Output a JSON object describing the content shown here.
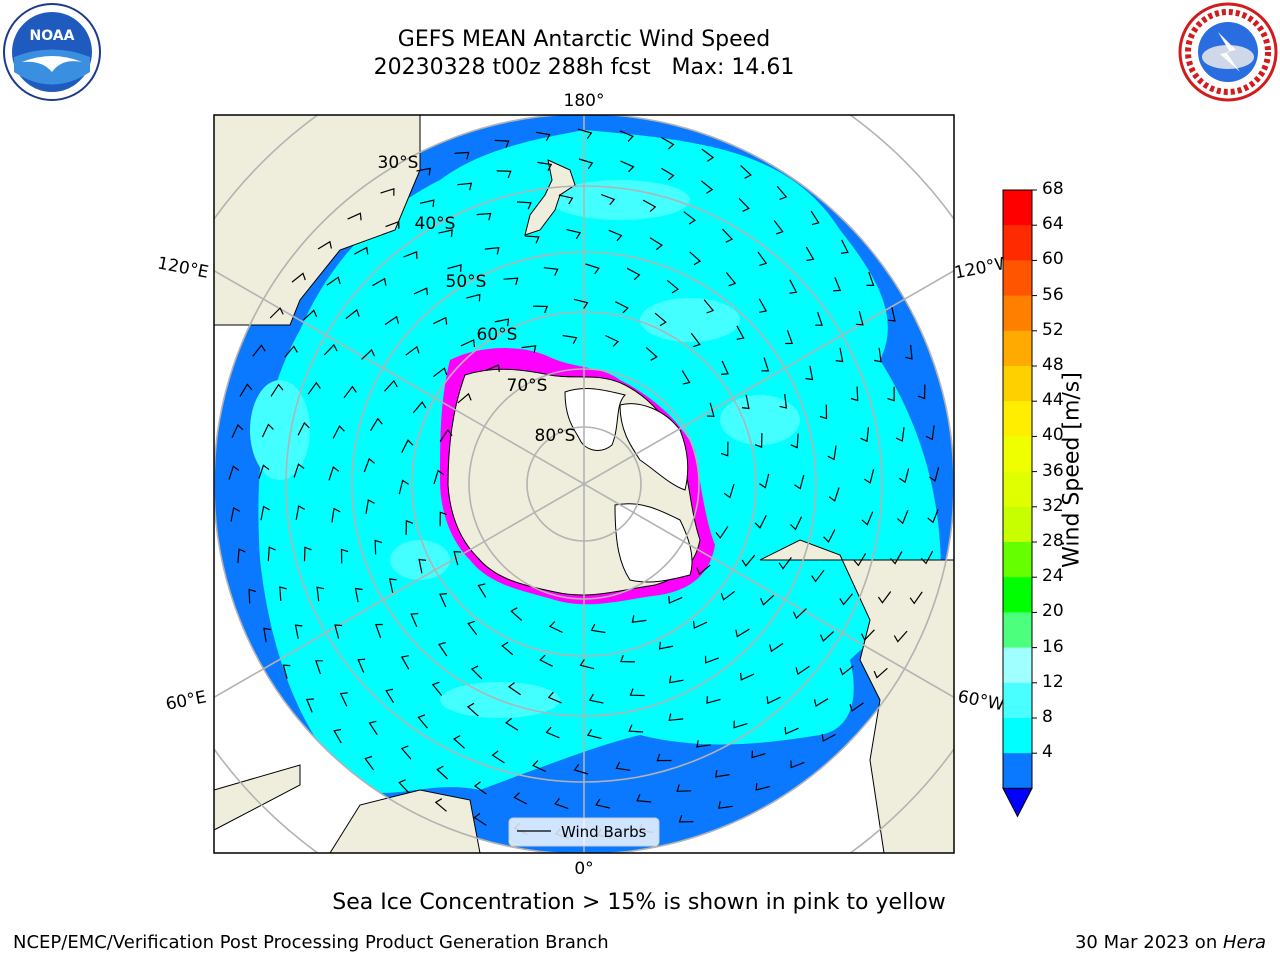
{
  "header": {
    "title": "GEFS MEAN Antarctic Wind Speed",
    "subtitle": "20230328 t00z 288h fcst   Max: 14.61"
  },
  "logos": {
    "left": "noaa-logo",
    "right": "national-weather-service-logo"
  },
  "map": {
    "projection": "south-polar-stereographic",
    "longitude_labels": [
      "180°",
      "120°E",
      "120°W",
      "60°E",
      "60°W",
      "0°"
    ],
    "latitude_labels": [
      "30°S",
      "40°S",
      "50°S",
      "60°S",
      "70°S",
      "80°S"
    ],
    "legend_label": "Wind Barbs",
    "colors": {
      "land": "#efeedc",
      "speed_4_8": "#0a78ff",
      "speed_8_12": "#00ffff",
      "speed_12_16": "#43ffff",
      "antarctic_ice_shelf": "#ffffff",
      "sea_ice_edge": [
        "#ff00ff",
        "#ffd700"
      ]
    }
  },
  "colorbar": {
    "title": "Wind Speed [m/s]",
    "ticks": [
      68,
      64,
      60,
      56,
      52,
      48,
      44,
      40,
      36,
      32,
      28,
      24,
      20,
      16,
      12,
      8,
      4
    ],
    "colors_top_to_bottom": [
      "#ff0000",
      "#ff2a00",
      "#ff5500",
      "#ff8000",
      "#ffaa00",
      "#ffd000",
      "#ffee00",
      "#f0ff00",
      "#e0ff00",
      "#c8ff00",
      "#66ff00",
      "#00ff00",
      "#4cff7c",
      "#a0ffff",
      "#4affff",
      "#00ffff",
      "#0a78ff"
    ],
    "underflow_color": "#0000ff"
  },
  "caption": "Sea Ice Concentration > 15% is shown in pink to yellow",
  "footer": {
    "left": "NCEP/EMC/Verification Post Processing Product Generation Branch",
    "right_text": "30 Mar 2023 on ",
    "right_italic": "Hera"
  }
}
